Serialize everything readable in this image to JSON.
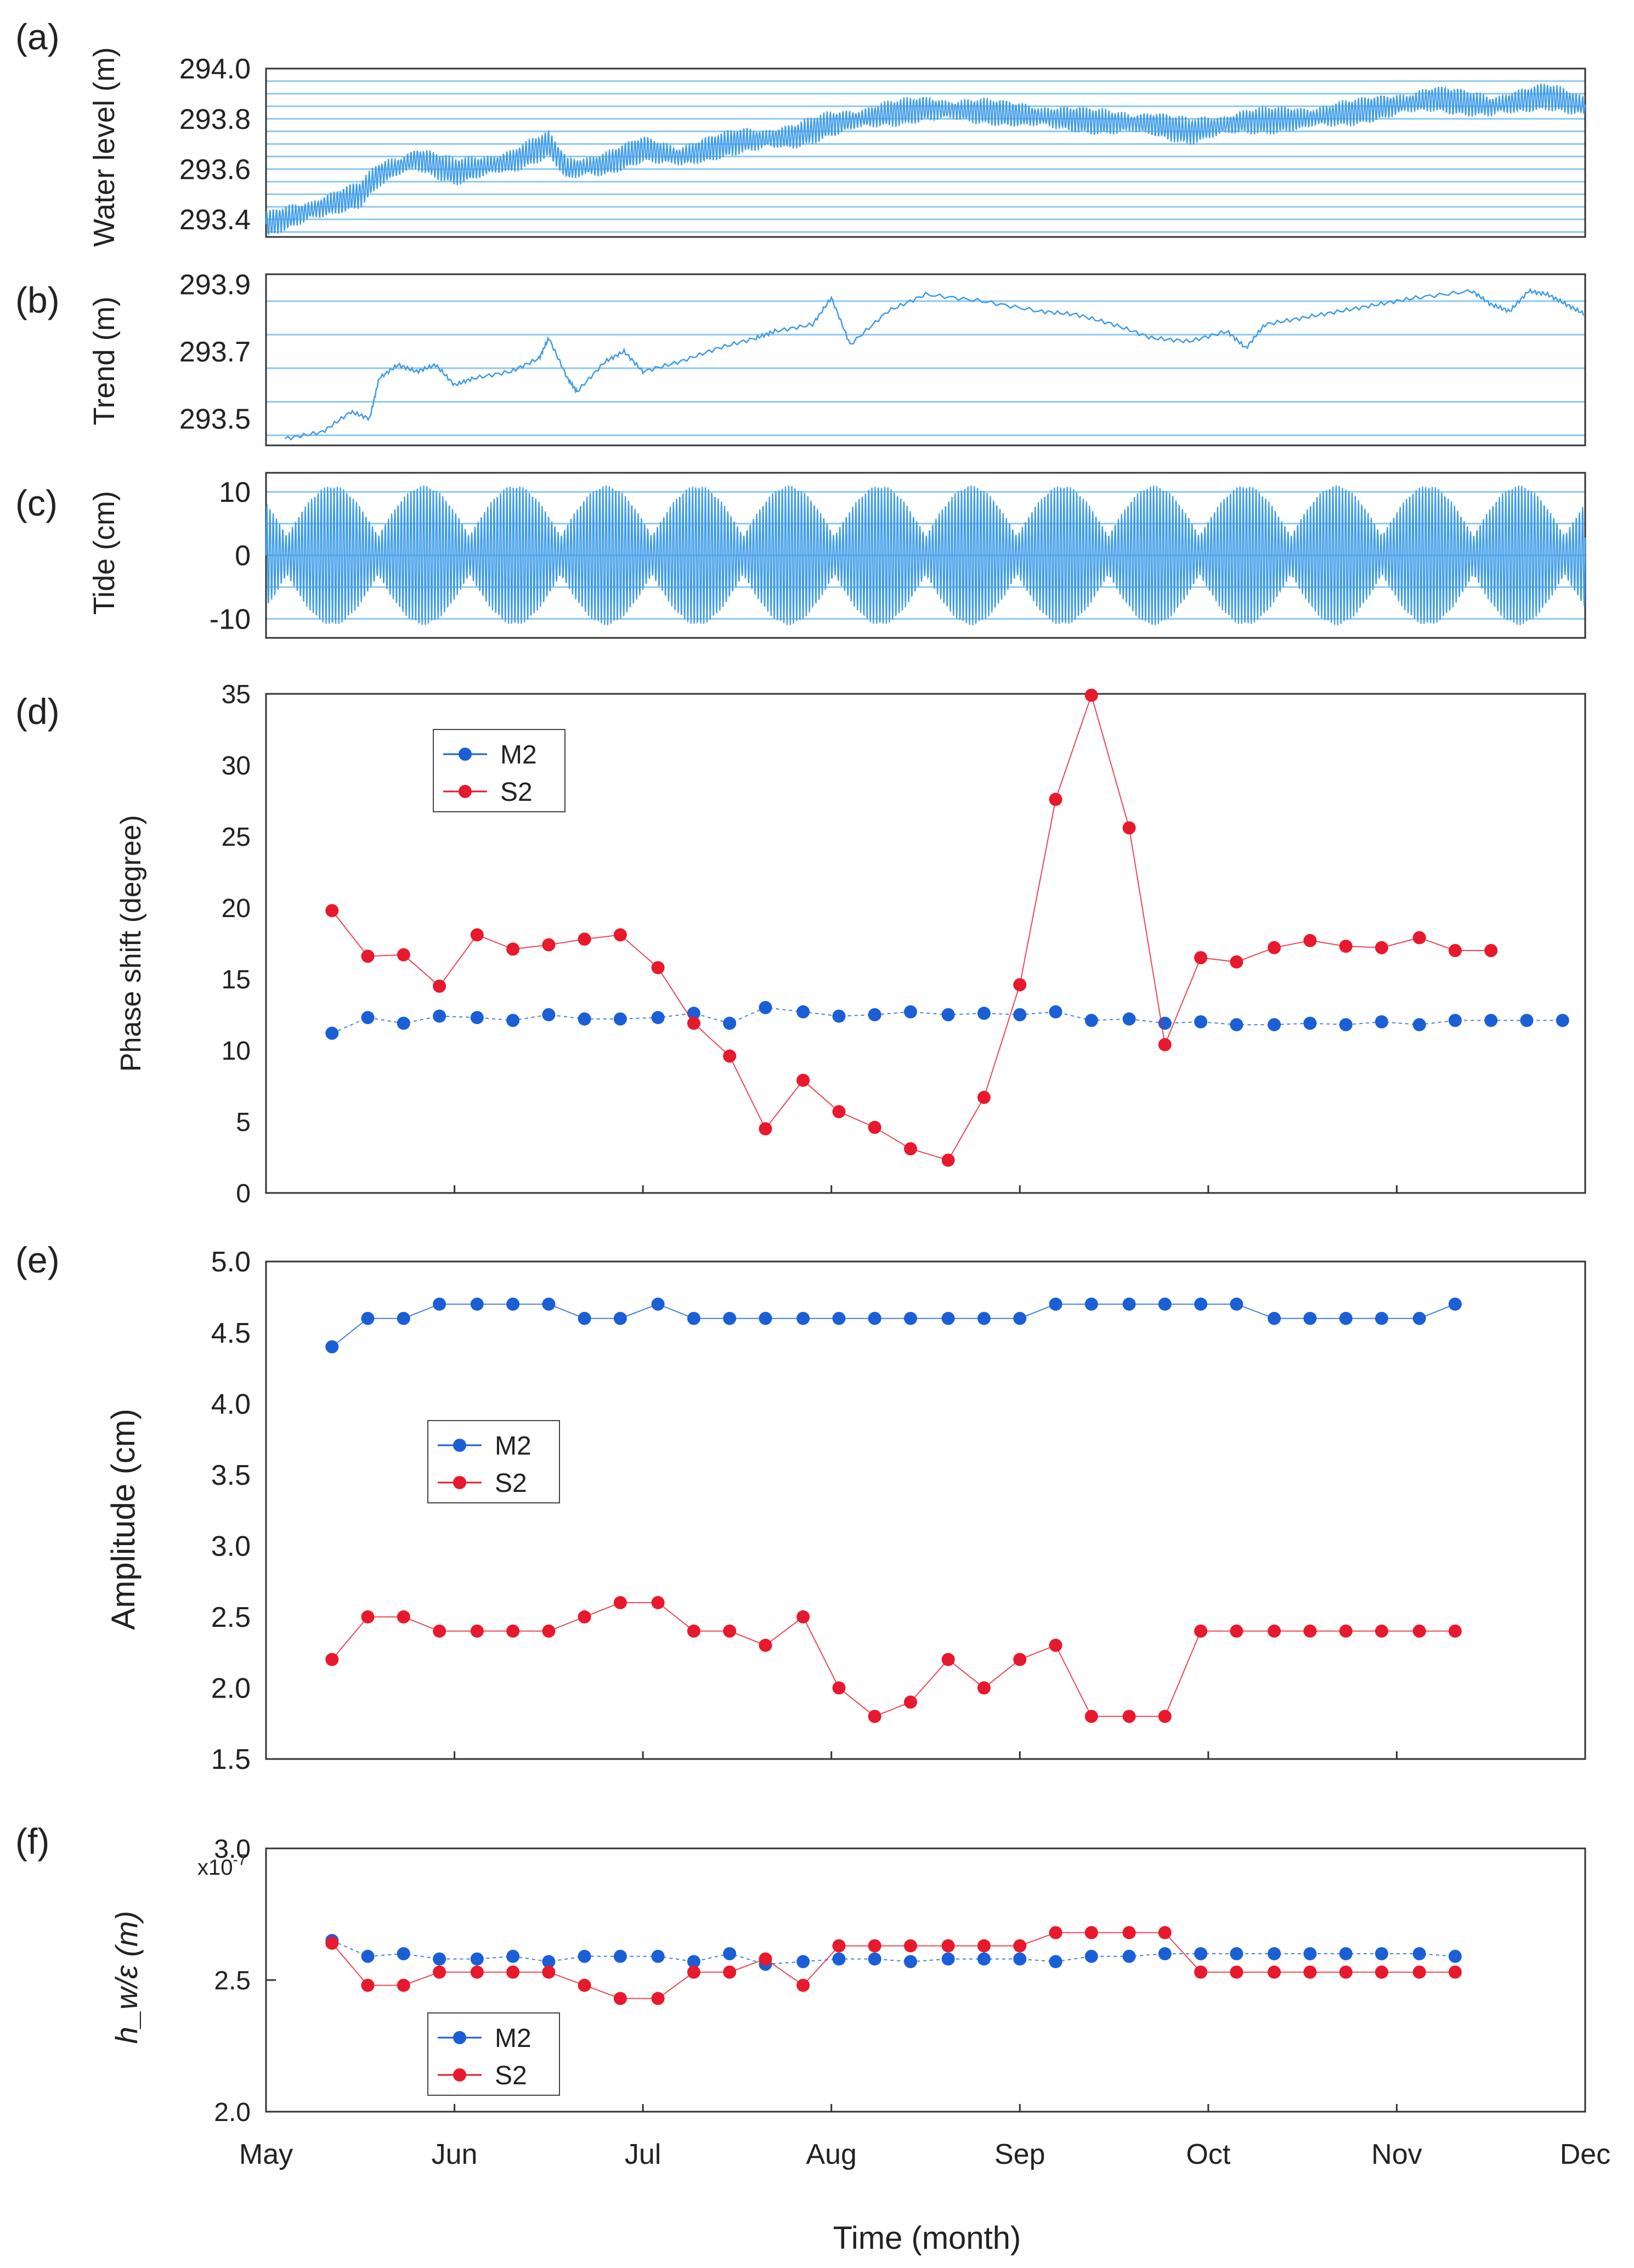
{
  "colors": {
    "blue": "#3d9be9",
    "m2": "#1a5fd6",
    "s2": "#e8192c",
    "grid": "#8ec8ee",
    "frame": "#333333",
    "text": "#222222"
  },
  "xaxis": {
    "label": "Time (month)",
    "months": [
      "May",
      "Jun",
      "Jul",
      "Aug",
      "Sep",
      "Oct",
      "Nov",
      "Dec"
    ]
  },
  "chart_data": [
    {
      "type": "line",
      "panel": "(a)",
      "ylabel": "Water level (m)",
      "ylim": [
        293.33,
        294.0
      ],
      "yticks": [
        "293.4",
        "293.6",
        "293.8",
        "294.0"
      ],
      "trend_points": [
        [
          0,
          293.38
        ],
        [
          0.3,
          293.45
        ],
        [
          0.5,
          293.5
        ],
        [
          0.6,
          293.58
        ],
        [
          0.8,
          293.64
        ],
        [
          1.0,
          293.59
        ],
        [
          1.3,
          293.63
        ],
        [
          1.5,
          293.7
        ],
        [
          1.6,
          293.6
        ],
        [
          1.8,
          293.62
        ],
        [
          2.0,
          293.68
        ],
        [
          2.2,
          293.65
        ],
        [
          2.5,
          293.71
        ],
        [
          2.8,
          293.73
        ],
        [
          3.0,
          293.78
        ],
        [
          3.3,
          293.82
        ],
        [
          3.5,
          293.84
        ],
        [
          3.8,
          293.83
        ],
        [
          4.1,
          293.81
        ],
        [
          4.4,
          293.79
        ],
        [
          4.7,
          293.78
        ],
        [
          4.9,
          293.75
        ],
        [
          5.2,
          293.79
        ],
        [
          5.5,
          293.8
        ],
        [
          5.8,
          293.83
        ],
        [
          6.2,
          293.88
        ],
        [
          6.5,
          293.85
        ],
        [
          6.8,
          293.89
        ],
        [
          7.0,
          293.85
        ]
      ],
      "tide_amplitude_m": 0.05
    },
    {
      "type": "line",
      "panel": "(b)",
      "ylabel": "Trend (m)",
      "ylim": [
        293.42,
        293.93
      ],
      "yticks": [
        "293.5",
        "293.7",
        "293.9"
      ],
      "points": [
        [
          0.1,
          293.44
        ],
        [
          0.3,
          293.46
        ],
        [
          0.45,
          293.52
        ],
        [
          0.55,
          293.5
        ],
        [
          0.6,
          293.62
        ],
        [
          0.7,
          293.66
        ],
        [
          0.8,
          293.64
        ],
        [
          0.9,
          293.66
        ],
        [
          1.0,
          293.6
        ],
        [
          1.1,
          293.62
        ],
        [
          1.3,
          293.64
        ],
        [
          1.45,
          293.68
        ],
        [
          1.5,
          293.74
        ],
        [
          1.6,
          293.62
        ],
        [
          1.65,
          293.58
        ],
        [
          1.8,
          293.67
        ],
        [
          1.9,
          293.7
        ],
        [
          2.0,
          293.64
        ],
        [
          2.2,
          293.67
        ],
        [
          2.4,
          293.71
        ],
        [
          2.6,
          293.74
        ],
        [
          2.7,
          293.76
        ],
        [
          2.9,
          293.78
        ],
        [
          3.0,
          293.86
        ],
        [
          3.1,
          293.72
        ],
        [
          3.3,
          293.82
        ],
        [
          3.5,
          293.87
        ],
        [
          3.8,
          293.85
        ],
        [
          4.1,
          293.82
        ],
        [
          4.3,
          293.81
        ],
        [
          4.5,
          293.78
        ],
        [
          4.7,
          293.74
        ],
        [
          4.9,
          293.73
        ],
        [
          5.1,
          293.76
        ],
        [
          5.2,
          293.71
        ],
        [
          5.3,
          293.78
        ],
        [
          5.5,
          293.8
        ],
        [
          5.7,
          293.82
        ],
        [
          5.9,
          293.84
        ],
        [
          6.1,
          293.86
        ],
        [
          6.4,
          293.88
        ],
        [
          6.5,
          293.84
        ],
        [
          6.6,
          293.82
        ],
        [
          6.7,
          293.88
        ],
        [
          6.8,
          293.87
        ],
        [
          6.9,
          293.84
        ],
        [
          7.0,
          293.81
        ]
      ]
    },
    {
      "type": "line",
      "panel": "(c)",
      "ylabel": "Tide (cm)",
      "ylim": [
        -13,
        13
      ],
      "yticks": [
        "10",
        "0",
        "-10"
      ],
      "spring_peak_cm": 11,
      "neap_min_cm": 3,
      "period_days": 14.77
    },
    {
      "type": "line",
      "panel": "(d)",
      "ylabel": "Phase shift (degree)",
      "ylim": [
        0,
        35
      ],
      "yticks": [
        "0",
        "5",
        "10",
        "15",
        "20",
        "25",
        "30",
        "35"
      ],
      "legend": [
        "M2",
        "S2"
      ],
      "series": [
        {
          "name": "M2",
          "x": [
            0.35,
            0.54,
            0.73,
            0.92,
            1.12,
            1.31,
            1.5,
            1.69,
            1.88,
            2.08,
            2.27,
            2.46,
            2.65,
            2.85,
            3.04,
            3.23,
            3.42,
            3.62,
            3.81,
            4.0,
            4.19,
            4.38,
            4.58,
            4.77,
            4.96,
            5.15,
            5.35,
            5.54,
            5.73,
            5.92,
            6.12,
            6.31,
            6.5,
            6.69,
            6.88
          ],
          "values": [
            11.2,
            12.3,
            11.9,
            12.4,
            12.3,
            12.1,
            12.5,
            12.2,
            12.2,
            12.3,
            12.6,
            11.9,
            13.0,
            12.7,
            12.4,
            12.5,
            12.7,
            12.5,
            12.6,
            12.5,
            12.7,
            12.1,
            12.2,
            11.9,
            12.0,
            11.8,
            11.8,
            11.9,
            11.8,
            12.0,
            11.8,
            12.1,
            12.1,
            12.1,
            12.1
          ]
        },
        {
          "name": "S2",
          "x": [
            0.35,
            0.54,
            0.73,
            0.92,
            1.12,
            1.31,
            1.5,
            1.69,
            1.88,
            2.08,
            2.27,
            2.46,
            2.65,
            2.85,
            3.04,
            3.23,
            3.42,
            3.62,
            3.81,
            4.0,
            4.19,
            4.38,
            4.58,
            4.77,
            4.96,
            5.15,
            5.35,
            5.54,
            5.73,
            5.92,
            6.12,
            6.31,
            6.5
          ],
          "values": [
            19.8,
            16.6,
            16.7,
            14.5,
            18.1,
            17.1,
            17.4,
            17.8,
            18.1,
            15.8,
            11.9,
            9.6,
            4.5,
            7.9,
            5.7,
            4.6,
            3.1,
            2.3,
            6.7,
            14.6,
            27.6,
            34.9,
            25.6,
            10.4,
            16.5,
            16.2,
            17.2,
            17.7,
            17.3,
            17.2,
            17.9,
            17.0,
            17.0
          ]
        }
      ]
    },
    {
      "type": "line",
      "panel": "(e)",
      "ylabel": "Amplitude (cm)",
      "ylim": [
        1.5,
        5.0
      ],
      "yticks": [
        "1.5",
        "2.0",
        "2.5",
        "3.0",
        "3.5",
        "4.0",
        "4.5",
        "5.0"
      ],
      "legend": [
        "M2",
        "S2"
      ],
      "series": [
        {
          "name": "M2",
          "x": [
            0.35,
            0.54,
            0.73,
            0.92,
            1.12,
            1.31,
            1.5,
            1.69,
            1.88,
            2.08,
            2.27,
            2.46,
            2.65,
            2.85,
            3.04,
            3.23,
            3.42,
            3.62,
            3.81,
            4.0,
            4.19,
            4.38,
            4.58,
            4.77,
            4.96,
            5.15,
            5.35,
            5.54,
            5.73,
            5.92,
            6.12,
            6.31,
            6.5,
            6.69,
            6.88
          ],
          "values": [
            4.4,
            4.6,
            4.6,
            4.7,
            4.7,
            4.7,
            4.7,
            4.6,
            4.6,
            4.7,
            4.6,
            4.6,
            4.6,
            4.6,
            4.6,
            4.6,
            4.6,
            4.6,
            4.6,
            4.6,
            4.7,
            4.7,
            4.7,
            4.7,
            4.7,
            4.7,
            4.6,
            4.6,
            4.6,
            4.6,
            4.6,
            4.7,
            null,
            null,
            null
          ]
        },
        {
          "name": "S2",
          "x": [
            0.35,
            0.54,
            0.73,
            0.92,
            1.12,
            1.31,
            1.5,
            1.69,
            1.88,
            2.08,
            2.27,
            2.46,
            2.65,
            2.85,
            3.04,
            3.23,
            3.42,
            3.62,
            3.81,
            4.0,
            4.19,
            4.38,
            4.58,
            4.77,
            4.96,
            5.15,
            5.35,
            5.54,
            5.73,
            5.92,
            6.12,
            6.31
          ],
          "values": [
            2.2,
            2.5,
            2.5,
            2.4,
            2.4,
            2.4,
            2.4,
            2.5,
            2.6,
            2.6,
            2.4,
            2.4,
            2.3,
            2.5,
            2.0,
            1.8,
            1.9,
            2.2,
            2.0,
            2.2,
            2.3,
            1.8,
            1.8,
            1.8,
            2.4,
            2.4,
            2.4,
            2.4,
            2.4,
            2.4,
            2.4,
            2.4
          ]
        }
      ]
    },
    {
      "type": "line",
      "panel": "(f)",
      "ylabel": "h_w/ε (m)",
      "ylim": [
        2.0,
        3.0
      ],
      "yticks": [
        "2.0",
        "2.5",
        "3.0"
      ],
      "multiplier": "x10",
      "multiplier_exp": "-7",
      "legend": [
        "M2",
        "S2"
      ],
      "series": [
        {
          "name": "M2",
          "x": [
            0.35,
            0.54,
            0.73,
            0.92,
            1.12,
            1.31,
            1.5,
            1.69,
            1.88,
            2.08,
            2.27,
            2.46,
            2.65,
            2.85,
            3.04,
            3.23,
            3.42,
            3.62,
            3.81,
            4.0,
            4.19,
            4.38,
            4.58,
            4.77,
            4.96,
            5.15,
            5.35,
            5.54,
            5.73,
            5.92,
            6.12,
            6.31,
            6.5,
            6.69,
            6.88
          ],
          "values": [
            2.65,
            2.59,
            2.6,
            2.58,
            2.58,
            2.59,
            2.57,
            2.59,
            2.59,
            2.59,
            2.57,
            2.6,
            2.56,
            2.57,
            2.58,
            2.58,
            2.57,
            2.58,
            2.58,
            2.58,
            2.57,
            2.59,
            2.59,
            2.6,
            2.6,
            2.6,
            2.6,
            2.6,
            2.6,
            2.6,
            2.6,
            2.59,
            null,
            null,
            null
          ]
        },
        {
          "name": "S2",
          "x": [
            0.35,
            0.54,
            0.73,
            0.92,
            1.12,
            1.31,
            1.5,
            1.69,
            1.88,
            2.08,
            2.27,
            2.46,
            2.65,
            2.85,
            3.04,
            3.23,
            3.42,
            3.62,
            3.81,
            4.0,
            4.19,
            4.38,
            4.58,
            4.77,
            4.96,
            5.15,
            5.35,
            5.54,
            5.73,
            5.92,
            6.12,
            6.31
          ],
          "values": [
            2.64,
            2.48,
            2.48,
            2.53,
            2.53,
            2.53,
            2.53,
            2.48,
            2.43,
            2.43,
            2.53,
            2.53,
            2.58,
            2.48,
            2.63,
            2.63,
            2.63,
            2.63,
            2.63,
            2.63,
            2.68,
            2.68,
            2.68,
            2.68,
            2.53,
            2.53,
            2.53,
            2.53,
            2.53,
            2.53,
            2.53,
            2.53
          ]
        }
      ]
    }
  ]
}
